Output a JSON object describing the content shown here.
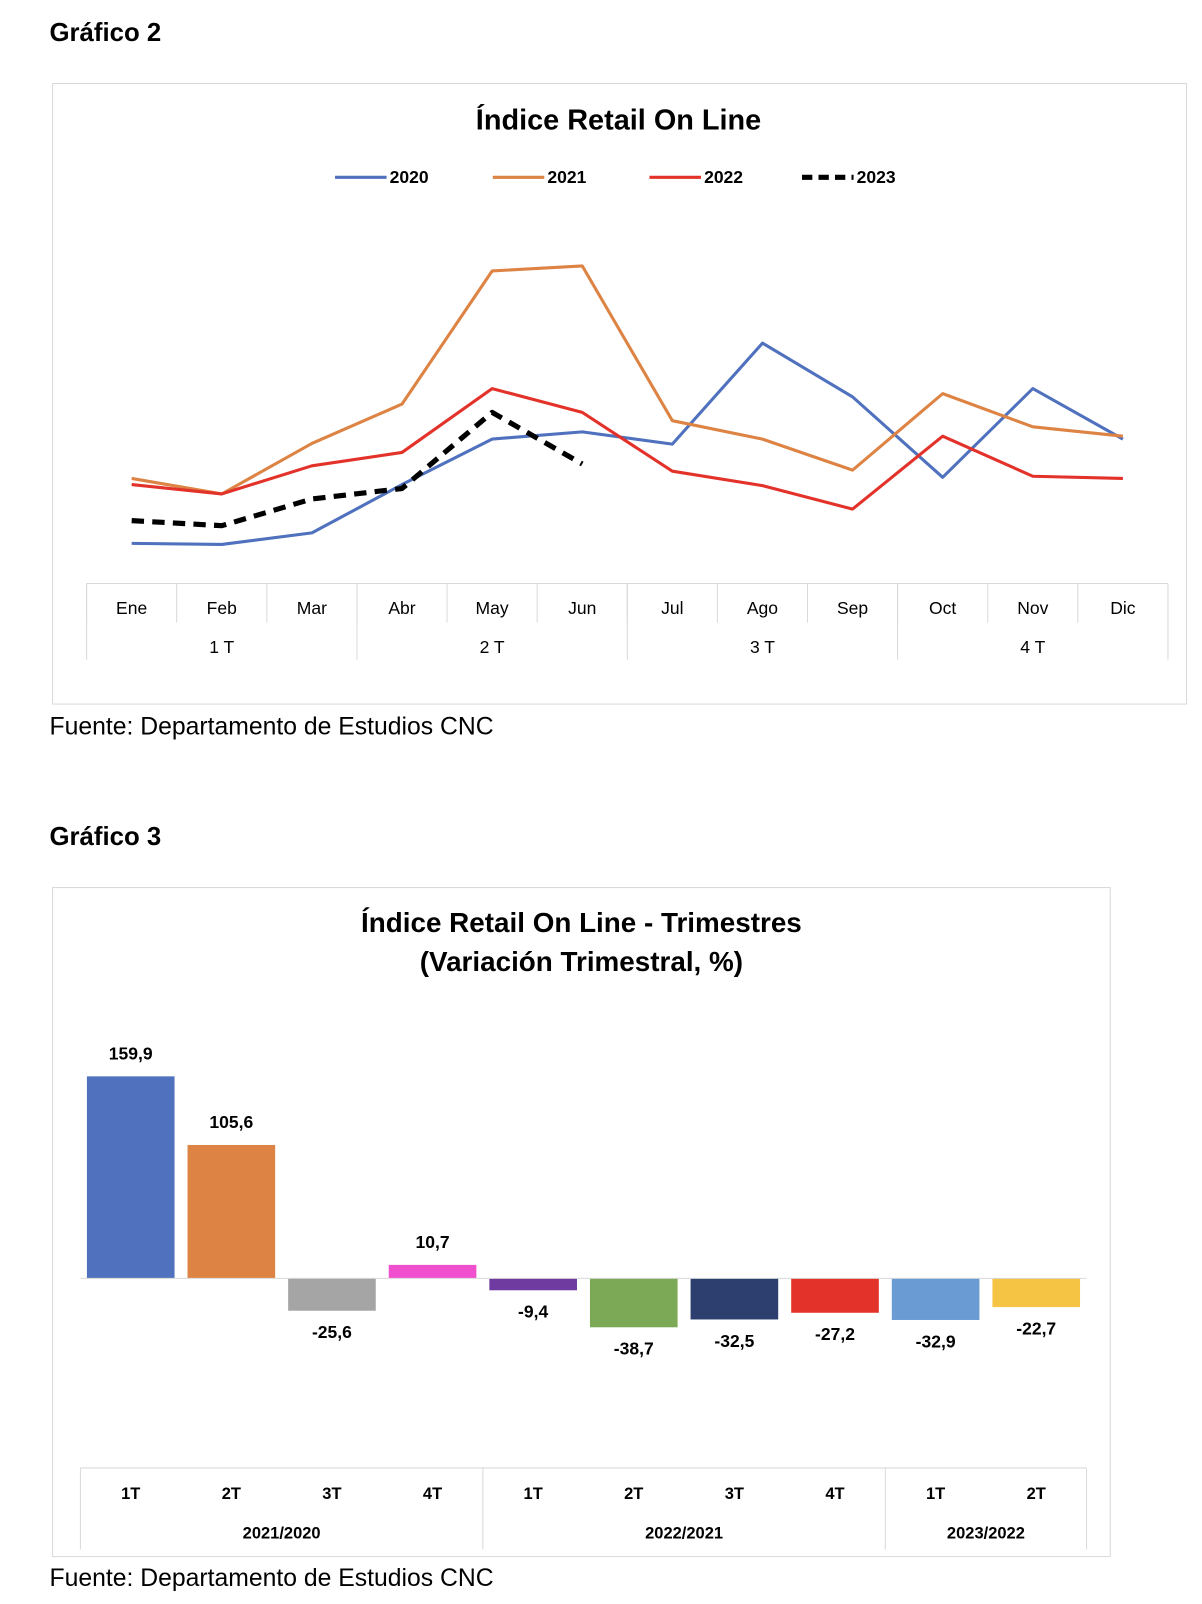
{
  "headings": [
    "Gráfico 2",
    "Gráfico 3"
  ],
  "sources": [
    "Fuente: Departamento de Estudios CNC",
    "Fuente: Departamento de Estudios CNC"
  ],
  "chart_data": [
    {
      "type": "line",
      "title": "Índice Retail On Line",
      "categories": [
        "Ene",
        "Feb",
        "Mar",
        "Abr",
        "May",
        "Jun",
        "Jul",
        "Ago",
        "Sep",
        "Oct",
        "Nov",
        "Dic"
      ],
      "groups": [
        {
          "label": "1 T",
          "count": 3
        },
        {
          "label": "2 T",
          "count": 3
        },
        {
          "label": "3 T",
          "count": 3
        },
        {
          "label": "4 T",
          "count": 3
        }
      ],
      "ylim": [
        0,
        100
      ],
      "series": [
        {
          "name": "2020",
          "color": "#4f71be",
          "values": [
            9.4,
            9.1,
            12.3,
            25.7,
            38.3,
            40.3,
            36.9,
            64.9,
            50.0,
            27.7,
            52.3,
            38.3
          ]
        },
        {
          "name": "2021",
          "color": "#dd8344",
          "values": [
            27.4,
            23.1,
            37.1,
            48.0,
            84.9,
            86.3,
            43.4,
            38.3,
            29.7,
            50.9,
            41.7,
            39.1
          ]
        },
        {
          "name": "2022",
          "color": "#e3322a",
          "values": [
            25.7,
            23.1,
            30.9,
            34.6,
            52.3,
            45.7,
            29.4,
            25.4,
            18.9,
            39.1,
            28.0,
            27.4
          ]
        },
        {
          "name": "2023",
          "color": "#000000",
          "dashed": true,
          "values": [
            15.7,
            14.3,
            21.7,
            24.6,
            45.7,
            31.4,
            null,
            null,
            null,
            null,
            null,
            null
          ]
        }
      ],
      "legend": "top"
    },
    {
      "type": "bar",
      "title": [
        "Índice Retail On Line - Trimestres",
        "(Variación Trimestral, %)"
      ],
      "categories": [
        "1T",
        "2T",
        "3T",
        "4T",
        "1T",
        "2T",
        "3T",
        "4T",
        "1T",
        "2T"
      ],
      "groups": [
        {
          "label": "2021/2020",
          "count": 4
        },
        {
          "label": "2022/2021",
          "count": 4
        },
        {
          "label": "2023/2022",
          "count": 2
        }
      ],
      "values": [
        159.9,
        105.6,
        -25.6,
        10.7,
        -9.4,
        -38.7,
        -32.5,
        -27.2,
        -32.9,
        -22.7
      ],
      "value_labels": [
        "159,9",
        "105,6",
        "-25,6",
        "10,7",
        "-9,4",
        "-38,7",
        "-32,5",
        "-27,2",
        "-32,9",
        "-22,7"
      ],
      "colors": [
        "#4f71be",
        "#dd8344",
        "#a5a5a5",
        "#f04fce",
        "#6f3ba0",
        "#7ca955",
        "#2c3f6f",
        "#e3322a",
        "#6a9bd3",
        "#f5c445"
      ],
      "ylim": [
        -150,
        200
      ]
    }
  ]
}
